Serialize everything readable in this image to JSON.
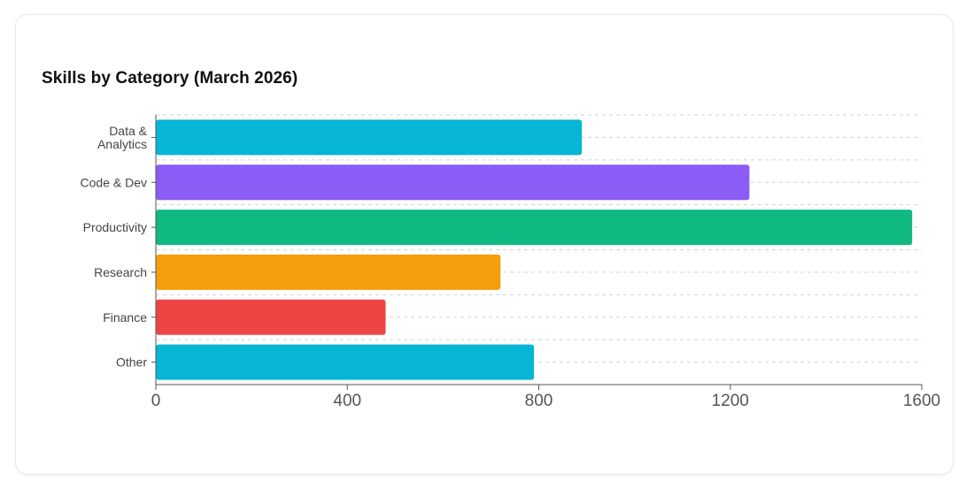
{
  "chart_data": {
    "type": "bar",
    "orientation": "horizontal",
    "title": "Skills by Category (March 2026)",
    "categories": [
      "Data & Analytics",
      "Code & Dev",
      "Productivity",
      "Research",
      "Finance",
      "Other"
    ],
    "category_lines": [
      [
        "Data &",
        "Analytics"
      ],
      [
        "Code & Dev"
      ],
      [
        "Productivity"
      ],
      [
        "Research"
      ],
      [
        "Finance"
      ],
      [
        "Other"
      ]
    ],
    "values": [
      890,
      1240,
      1580,
      720,
      480,
      790
    ],
    "colors": [
      "#06b6d4",
      "#8b5cf6",
      "#10b981",
      "#f59e0b",
      "#ef4444",
      "#06b6d4"
    ],
    "xlim": [
      0,
      1600
    ],
    "xticks": [
      "0",
      "400",
      "800",
      "1200",
      "1600"
    ],
    "xlabel": "",
    "ylabel": "",
    "grid": "dashed horizontal",
    "legend": "none"
  }
}
